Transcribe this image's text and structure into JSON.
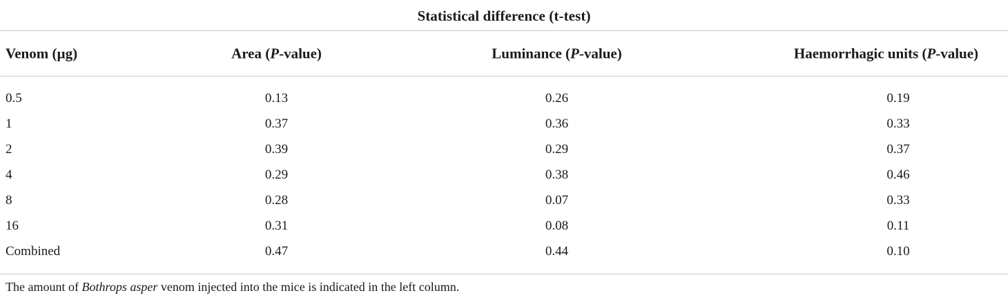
{
  "table": {
    "super_header": "Statistical difference (t-test)",
    "columns": {
      "venom": "Venom (µg)",
      "area_prefix": "Area (",
      "luminance_prefix": "Luminance (",
      "hu_prefix": "Haemorrhagic units (",
      "p_italic": "P",
      "p_suffix": "-value)"
    },
    "rows": [
      {
        "venom": "0.5",
        "area": "0.13",
        "luminance": "0.26",
        "hu": "0.19"
      },
      {
        "venom": "1",
        "area": "0.37",
        "luminance": "0.36",
        "hu": "0.33"
      },
      {
        "venom": "2",
        "area": "0.39",
        "luminance": "0.29",
        "hu": "0.37"
      },
      {
        "venom": "4",
        "area": "0.29",
        "luminance": "0.38",
        "hu": "0.46"
      },
      {
        "venom": "8",
        "area": "0.28",
        "luminance": "0.07",
        "hu": "0.33"
      },
      {
        "venom": "16",
        "area": "0.31",
        "luminance": "0.08",
        "hu": "0.11"
      },
      {
        "venom": "Combined",
        "area": "0.47",
        "luminance": "0.44",
        "hu": "0.10"
      }
    ],
    "footnote": {
      "before": "The amount of ",
      "species": "Bothrops asper",
      "after": " venom injected into the mice is indicated in the left column."
    }
  }
}
